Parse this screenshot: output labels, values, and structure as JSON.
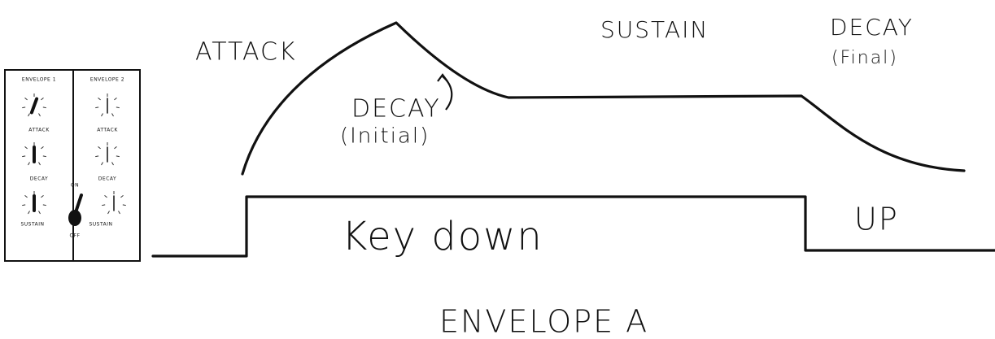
{
  "labels": {
    "attack": "ATTACK",
    "sustain": "SUSTAIN",
    "decay_final": "DECAY",
    "decay_final_note": "(Final)",
    "decay_initial": "DECAY",
    "decay_initial_note": "(Initial)",
    "key_down": "Key down",
    "key_up": "UP",
    "caption": "ENVELOPE A"
  },
  "panel": {
    "columns": [
      {
        "title": "ENVELOPE 1",
        "knobs": [
          "ATTACK",
          "DECAY",
          "SUSTAIN"
        ]
      },
      {
        "title": "ENVELOPE 2",
        "knobs": [
          "ATTACK",
          "DECAY",
          "SUSTAIN"
        ]
      }
    ],
    "switch": {
      "on": "ON",
      "off": "OFF"
    }
  }
}
